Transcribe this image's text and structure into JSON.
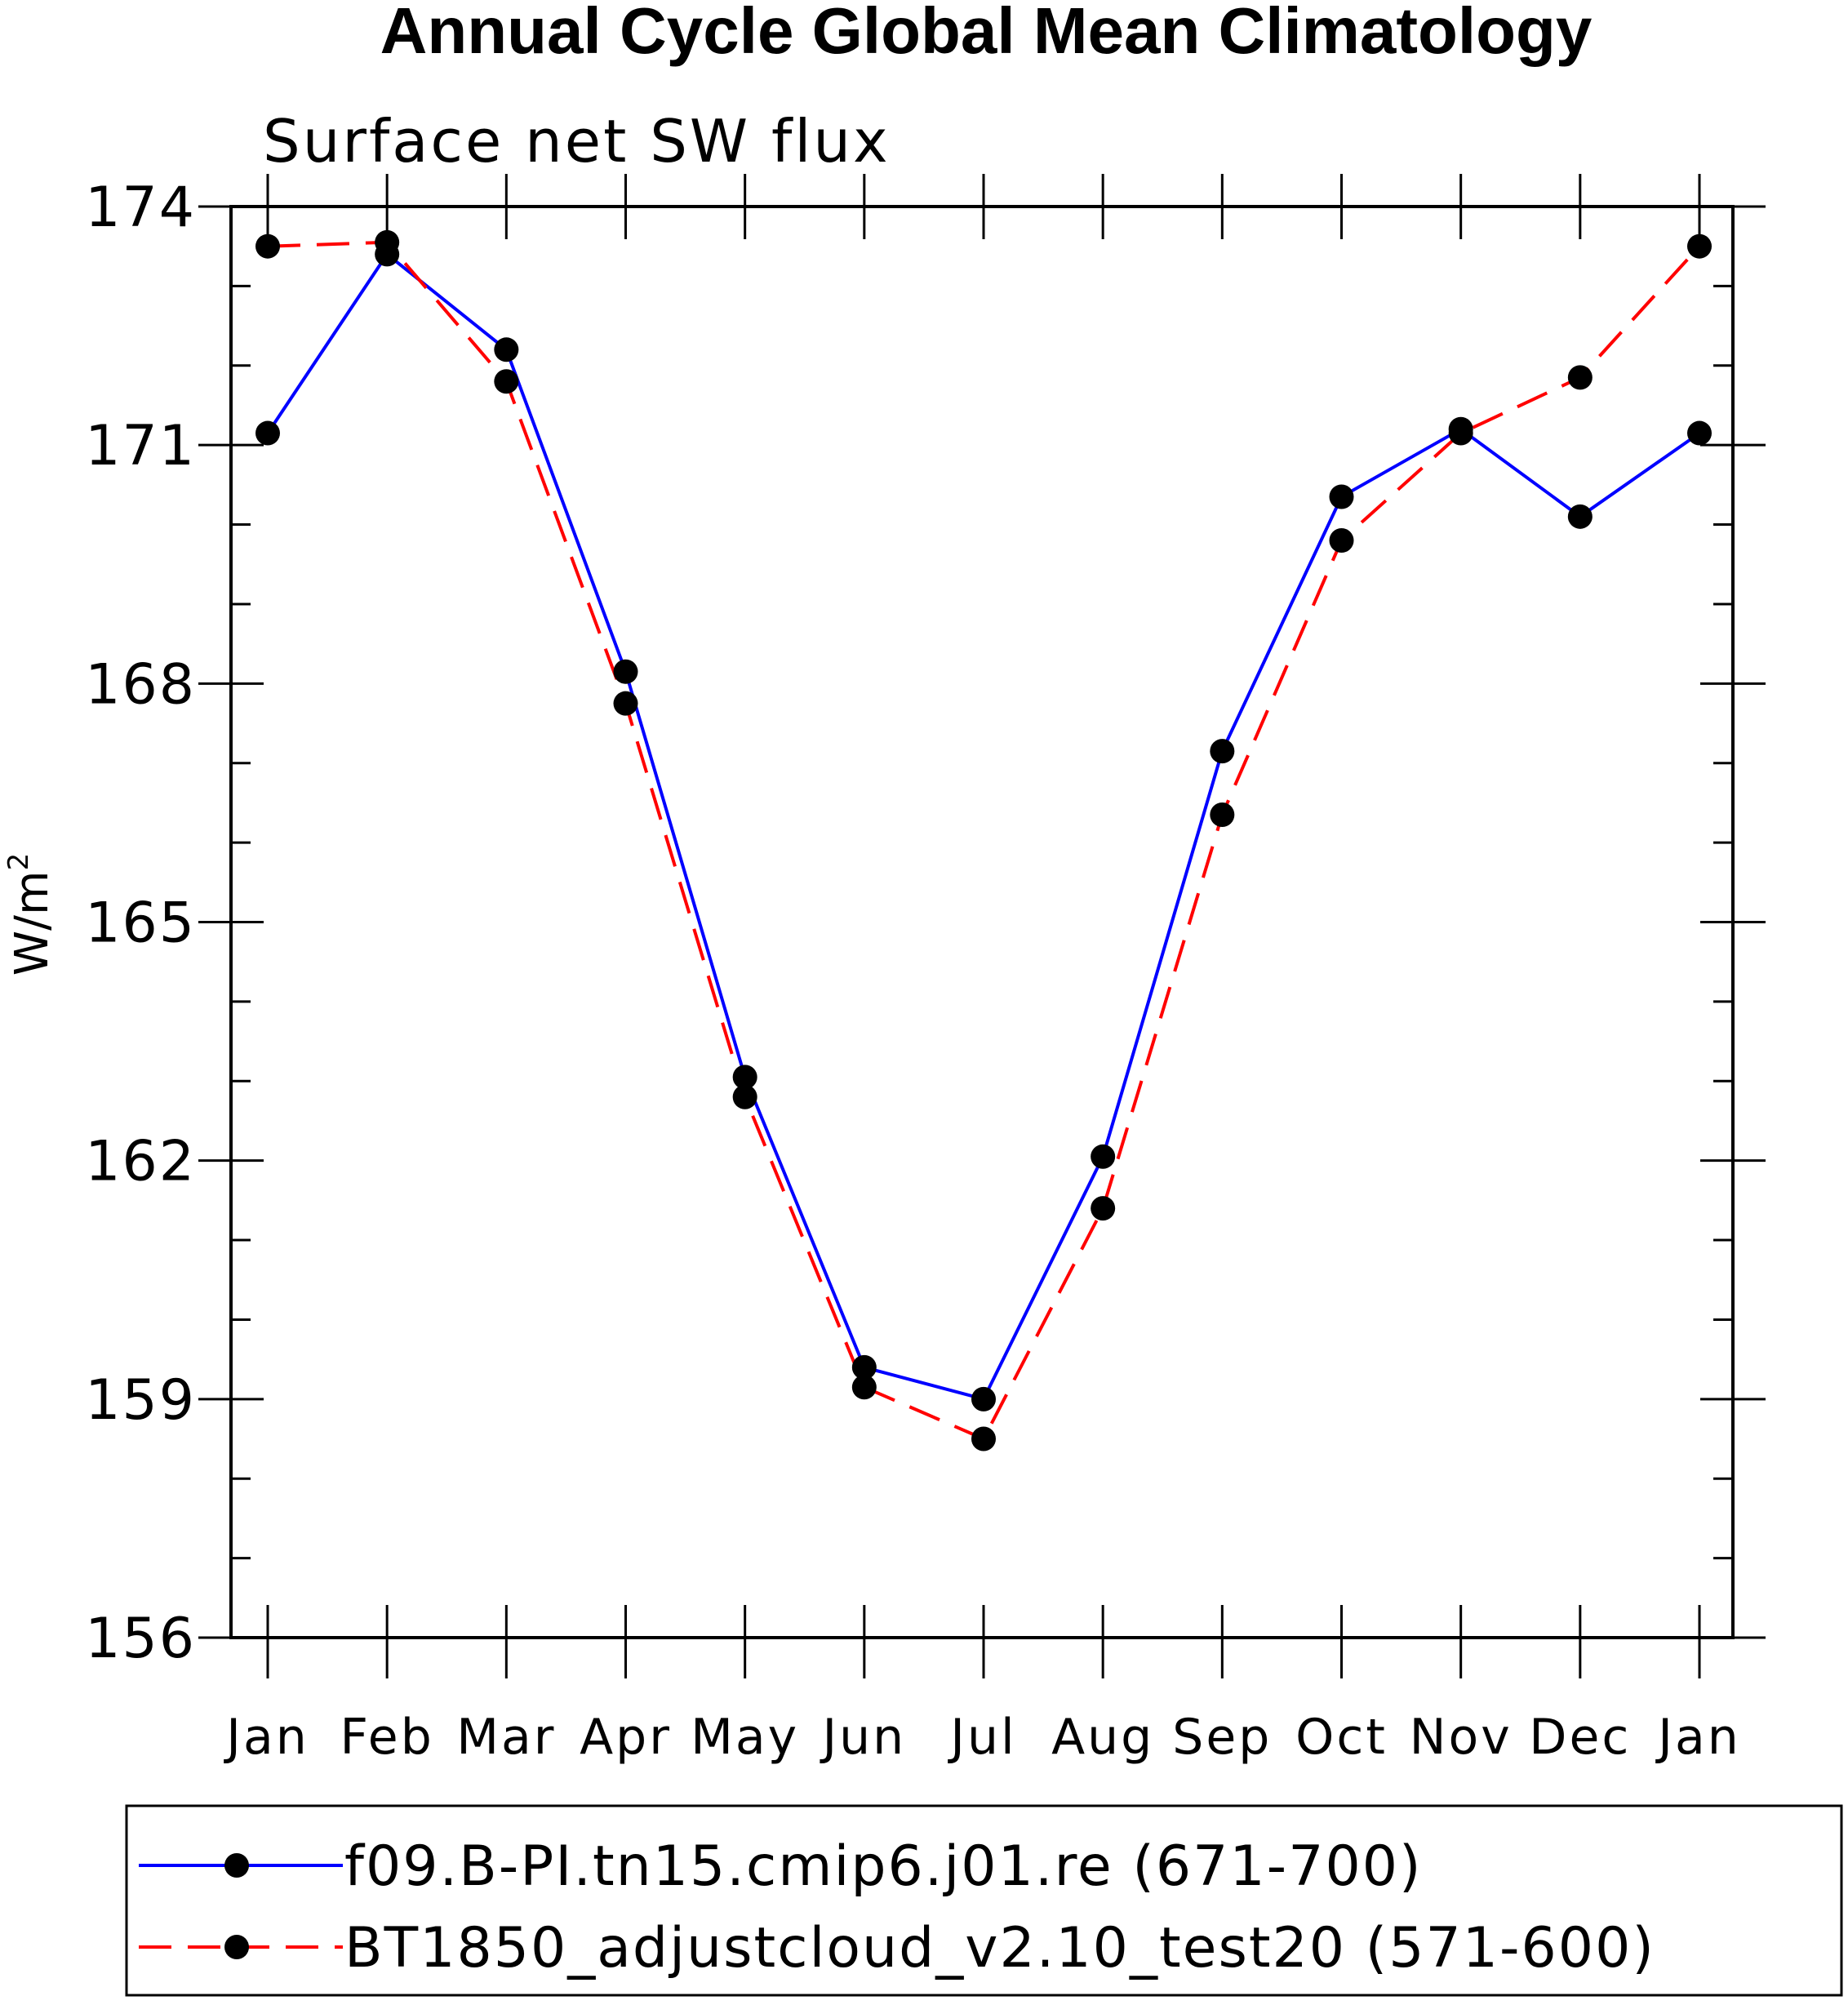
{
  "chart_data": {
    "type": "line",
    "title": "Annual Cycle Global Mean Climatology",
    "subtitle": "Surface net SW flux",
    "ylabel_base": "W/m",
    "ylabel_sup": "2",
    "xlabel": "",
    "categories": [
      "Jan",
      "Feb",
      "Mar",
      "Apr",
      "May",
      "Jun",
      "Jul",
      "Aug",
      "Sep",
      "Oct",
      "Nov",
      "Dec",
      "Jan"
    ],
    "ylim": [
      156,
      174
    ],
    "yticks": [
      156,
      159,
      162,
      165,
      168,
      171,
      174
    ],
    "yminor_step": 1,
    "grid": false,
    "legend_position": "bottom",
    "series": [
      {
        "name": "f09.B-PI.tn15.cmip6.j01.re (671-700)",
        "color": "#0000ff",
        "dash": "solid",
        "marker": "filled-circle",
        "values": [
          171.15,
          173.4,
          172.2,
          168.15,
          163.05,
          159.4,
          159.0,
          162.05,
          167.15,
          170.35,
          171.2,
          170.1,
          171.15
        ]
      },
      {
        "name": "BT1850_adjustcloud_v2.10_test20 (571-600)",
        "color": "#ff0000",
        "dash": "dashed",
        "marker": "filled-circle",
        "values": [
          173.5,
          173.55,
          171.8,
          167.75,
          162.8,
          159.15,
          158.5,
          161.4,
          166.35,
          169.8,
          171.15,
          171.85,
          173.5
        ]
      }
    ]
  }
}
